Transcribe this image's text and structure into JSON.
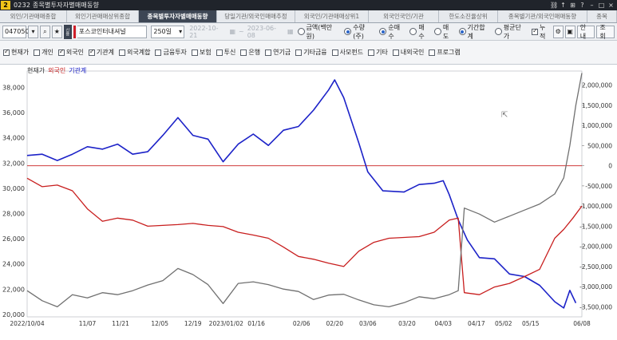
{
  "window": {
    "app_no": "2",
    "title": "0232 종목별투자자별매매동향"
  },
  "tabs": [
    {
      "label": "외인/기관매매종합",
      "active": false
    },
    {
      "label": "외인기관매매상위종합",
      "active": false
    },
    {
      "label": "종목별투자자별매매동향",
      "active": true
    },
    {
      "label": "당일기관/외국인매매추정",
      "active": false
    },
    {
      "label": "외국인/기관매매상위1",
      "active": false
    },
    {
      "label": "외국인국인/기관",
      "active": false
    },
    {
      "label": "한도소진율상위",
      "active": false
    },
    {
      "label": "종목별기관/외국인매매동향",
      "active": false
    },
    {
      "label": "종목",
      "active": false
    }
  ],
  "toolbar": {
    "stock_code": "047050",
    "stock_name": "포스코인터내셔널",
    "vertical_tag": "신용",
    "period": "250일",
    "start_date": "2022-10-21",
    "end_date": "2023-06-08",
    "radios": [
      {
        "label": "금액(백만원)",
        "selected": false
      },
      {
        "label": "수량(주)",
        "selected": true
      },
      {
        "label": "순매수",
        "selected": true
      },
      {
        "label": "매수",
        "selected": false
      },
      {
        "label": "매도",
        "selected": false
      },
      {
        "label": "기간합계",
        "selected": true
      },
      {
        "label": "평균단가",
        "selected": false
      }
    ],
    "cumulative": {
      "label": "누적",
      "checked": true
    },
    "guide_label": "안내",
    "query_label": "조회"
  },
  "filters": [
    {
      "label": "현재가",
      "checked": true
    },
    {
      "label": "개인",
      "checked": false
    },
    {
      "label": "외국인",
      "checked": true
    },
    {
      "label": "기관계",
      "checked": true
    },
    {
      "label": "외국계합",
      "checked": false
    },
    {
      "label": "금융투자",
      "checked": false
    },
    {
      "label": "보험",
      "checked": false
    },
    {
      "label": "투신",
      "checked": false
    },
    {
      "label": "은행",
      "checked": false
    },
    {
      "label": "연기금",
      "checked": false
    },
    {
      "label": "기타금융",
      "checked": false
    },
    {
      "label": "사모펀드",
      "checked": false
    },
    {
      "label": "기타",
      "checked": false
    },
    {
      "label": "내외국인",
      "checked": false
    },
    {
      "label": "프로그램",
      "checked": false
    }
  ],
  "chart_data": {
    "type": "line",
    "legend": [
      "현재가",
      "외국인",
      "기관계"
    ],
    "colors": {
      "price": "#1c22c8",
      "foreign": "#c81e1e",
      "institution": "#707070",
      "zero": "#c81e1e"
    },
    "left_axis": {
      "ticks": [
        20000,
        22000,
        24000,
        26000,
        28000,
        30000,
        32000,
        34000,
        36000,
        38000
      ],
      "range": [
        19800,
        39300
      ]
    },
    "right_axis": {
      "ticks": [
        -3500000,
        -3000000,
        -2500000,
        -2000000,
        -1500000,
        -1000000,
        -500000,
        0,
        500000,
        1000000,
        1500000,
        2000000
      ],
      "tick_labels": [
        "-3,500,000",
        "-3,000,000",
        "-2,500,000",
        "-2,000,000",
        "-1,500,000",
        "-1,000,000",
        "-500,000",
        "0",
        "500,000",
        "1,000,000",
        "1,500,000",
        "2,000,000"
      ],
      "range": [
        -3750000,
        2350000
      ]
    },
    "x_labels": [
      "2022/10/04",
      "11/07",
      "11/21",
      "12/05",
      "12/19",
      "2023/01/02",
      "01/16",
      "02/06",
      "02/20",
      "03/06",
      "03/20",
      "04/03",
      "04/17",
      "05/02",
      "05/15",
      "06/08"
    ],
    "x_label_index": [
      0,
      20,
      31,
      44,
      55,
      66,
      76,
      91,
      102,
      113,
      126,
      138,
      149,
      158,
      167,
      184
    ],
    "series": [
      {
        "name": "현재가",
        "axis": "left",
        "points": [
          [
            0,
            32600
          ],
          [
            5,
            32700
          ],
          [
            10,
            32200
          ],
          [
            15,
            32700
          ],
          [
            20,
            33300
          ],
          [
            25,
            33100
          ],
          [
            30,
            33500
          ],
          [
            35,
            32700
          ],
          [
            40,
            32900
          ],
          [
            45,
            34200
          ],
          [
            50,
            35600
          ],
          [
            55,
            34200
          ],
          [
            60,
            33900
          ],
          [
            65,
            32100
          ],
          [
            70,
            33500
          ],
          [
            75,
            34300
          ],
          [
            80,
            33400
          ],
          [
            85,
            34600
          ],
          [
            90,
            34900
          ],
          [
            95,
            36200
          ],
          [
            100,
            37800
          ],
          [
            102,
            38600
          ],
          [
            105,
            37200
          ],
          [
            110,
            33600
          ],
          [
            113,
            31300
          ],
          [
            118,
            29800
          ],
          [
            125,
            29700
          ],
          [
            130,
            30300
          ],
          [
            135,
            30400
          ],
          [
            138,
            30600
          ],
          [
            140,
            29500
          ],
          [
            143,
            27500
          ],
          [
            146,
            25900
          ],
          [
            150,
            24500
          ],
          [
            155,
            24400
          ],
          [
            160,
            23200
          ],
          [
            165,
            23000
          ],
          [
            170,
            22300
          ],
          [
            175,
            21000
          ],
          [
            178,
            20500
          ],
          [
            180,
            21900
          ],
          [
            182,
            20900
          ]
        ]
      },
      {
        "name": "외국인",
        "axis": "right",
        "points": [
          [
            0,
            -310000
          ],
          [
            5,
            -520000
          ],
          [
            10,
            -480000
          ],
          [
            15,
            -620000
          ],
          [
            20,
            -1070000
          ],
          [
            25,
            -1380000
          ],
          [
            30,
            -1300000
          ],
          [
            35,
            -1350000
          ],
          [
            40,
            -1500000
          ],
          [
            45,
            -1480000
          ],
          [
            50,
            -1460000
          ],
          [
            55,
            -1430000
          ],
          [
            60,
            -1480000
          ],
          [
            65,
            -1510000
          ],
          [
            70,
            -1650000
          ],
          [
            75,
            -1720000
          ],
          [
            80,
            -1800000
          ],
          [
            85,
            -2020000
          ],
          [
            90,
            -2250000
          ],
          [
            95,
            -2320000
          ],
          [
            100,
            -2420000
          ],
          [
            105,
            -2500000
          ],
          [
            110,
            -2120000
          ],
          [
            115,
            -1900000
          ],
          [
            120,
            -1800000
          ],
          [
            125,
            -1780000
          ],
          [
            130,
            -1760000
          ],
          [
            135,
            -1650000
          ],
          [
            140,
            -1350000
          ],
          [
            143,
            -1300000
          ],
          [
            145,
            -3150000
          ],
          [
            150,
            -3200000
          ],
          [
            155,
            -3010000
          ],
          [
            160,
            -2920000
          ],
          [
            165,
            -2750000
          ],
          [
            170,
            -2570000
          ],
          [
            175,
            -1800000
          ],
          [
            178,
            -1580000
          ],
          [
            181,
            -1300000
          ],
          [
            184,
            -1000000
          ]
        ]
      },
      {
        "name": "기관계",
        "axis": "right",
        "points": [
          [
            0,
            -3100000
          ],
          [
            5,
            -3350000
          ],
          [
            10,
            -3500000
          ],
          [
            15,
            -3200000
          ],
          [
            20,
            -3280000
          ],
          [
            25,
            -3150000
          ],
          [
            30,
            -3200000
          ],
          [
            35,
            -3100000
          ],
          [
            40,
            -2960000
          ],
          [
            45,
            -2850000
          ],
          [
            50,
            -2550000
          ],
          [
            55,
            -2700000
          ],
          [
            60,
            -2950000
          ],
          [
            65,
            -3420000
          ],
          [
            70,
            -2920000
          ],
          [
            75,
            -2880000
          ],
          [
            80,
            -2950000
          ],
          [
            85,
            -3060000
          ],
          [
            90,
            -3120000
          ],
          [
            95,
            -3320000
          ],
          [
            100,
            -3210000
          ],
          [
            105,
            -3190000
          ],
          [
            110,
            -3330000
          ],
          [
            115,
            -3450000
          ],
          [
            120,
            -3500000
          ],
          [
            125,
            -3400000
          ],
          [
            130,
            -3250000
          ],
          [
            135,
            -3300000
          ],
          [
            140,
            -3200000
          ],
          [
            143,
            -3100000
          ],
          [
            145,
            -1050000
          ],
          [
            150,
            -1200000
          ],
          [
            155,
            -1400000
          ],
          [
            160,
            -1250000
          ],
          [
            165,
            -1100000
          ],
          [
            170,
            -950000
          ],
          [
            175,
            -700000
          ],
          [
            178,
            -300000
          ],
          [
            180,
            500000
          ],
          [
            182,
            1500000
          ],
          [
            184,
            2300000
          ]
        ]
      }
    ]
  }
}
